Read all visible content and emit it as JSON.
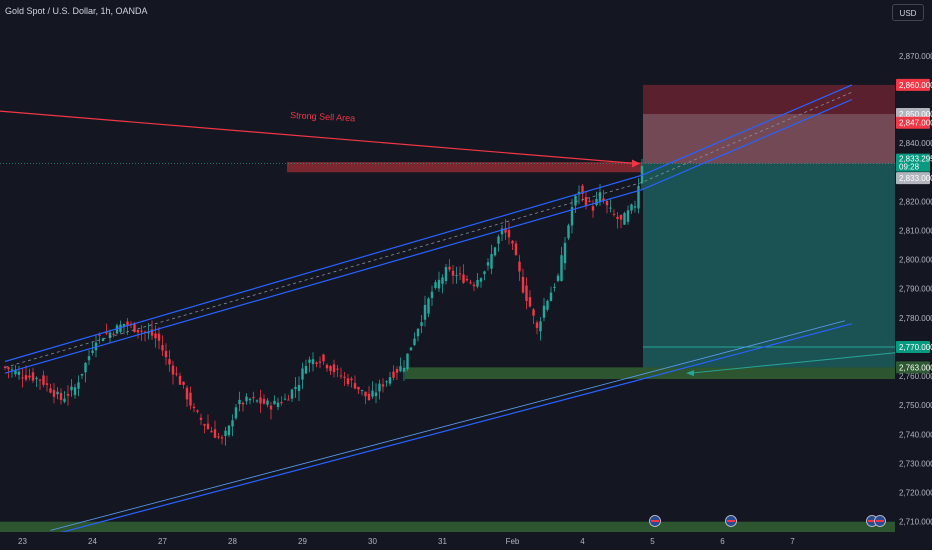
{
  "header": {
    "title": "Gold Spot / U.S. Dollar, 1h, OANDA"
  },
  "currency_button": {
    "label": "USD"
  },
  "colors": {
    "background": "#141722",
    "up": "#26a69a",
    "down": "#f23645",
    "channel": "#2962ff",
    "grid": "#1e222d",
    "zone_green": "#2e5a32",
    "zone_red": "#8c2a33"
  },
  "annotations": {
    "strong_sell_label": "Strong Sell Area"
  },
  "price_labels": {
    "stop": "2,860.000",
    "level_2850": "2,850.000",
    "level_2847": "2,847.000",
    "current_price": "2,833.295",
    "countdown": "09:28",
    "entry": "2,833.000",
    "level_2770": "2,770.000",
    "level_2763": "2,763.000"
  },
  "chart_data": {
    "type": "candlestick",
    "symbol": "Gold Spot / U.S. Dollar",
    "timeframe": "1h",
    "source": "OANDA",
    "ylim": [
      2702,
      2884
    ],
    "y_ticks": [
      "2,870.000",
      "2,840.000",
      "2,820.000",
      "2,810.000",
      "2,800.000",
      "2,790.000",
      "2,780.000",
      "2,760.000",
      "2,750.000",
      "2,740.000",
      "2,730.000",
      "2,720.000",
      "2,710.000"
    ],
    "y_tick_values": [
      2870,
      2840,
      2820,
      2810,
      2800,
      2790,
      2780,
      2760,
      2750,
      2740,
      2730,
      2720,
      2710
    ],
    "x_ticks": [
      "23",
      "24",
      "27",
      "28",
      "29",
      "30",
      "31",
      "Feb",
      "4",
      "5",
      "6",
      "7"
    ],
    "x_tick_index": [
      5,
      25,
      45,
      65,
      85,
      105,
      125,
      145,
      165,
      185,
      205,
      225
    ],
    "close_path": [
      [
        0,
        2763
      ],
      [
        6,
        2760
      ],
      [
        10,
        2759
      ],
      [
        16,
        2752
      ],
      [
        20,
        2756
      ],
      [
        24,
        2767
      ],
      [
        26,
        2773
      ],
      [
        30,
        2775
      ],
      [
        34,
        2778
      ],
      [
        38,
        2776
      ],
      [
        42,
        2774
      ],
      [
        44,
        2772
      ],
      [
        46,
        2766
      ],
      [
        50,
        2758
      ],
      [
        54,
        2748
      ],
      [
        58,
        2742
      ],
      [
        62,
        2738
      ],
      [
        64,
        2742
      ],
      [
        66,
        2750
      ],
      [
        70,
        2752
      ],
      [
        76,
        2750
      ],
      [
        80,
        2752
      ],
      [
        84,
        2758
      ],
      [
        86,
        2765
      ],
      [
        90,
        2766
      ],
      [
        94,
        2762
      ],
      [
        96,
        2760
      ],
      [
        100,
        2757
      ],
      [
        104,
        2752
      ],
      [
        106,
        2755
      ],
      [
        110,
        2760
      ],
      [
        114,
        2764
      ],
      [
        118,
        2777
      ],
      [
        122,
        2789
      ],
      [
        126,
        2796
      ],
      [
        130,
        2794
      ],
      [
        134,
        2792
      ],
      [
        138,
        2798
      ],
      [
        140,
        2805
      ],
      [
        142,
        2810
      ],
      [
        144,
        2808
      ],
      [
        146,
        2800
      ],
      [
        148,
        2790
      ],
      [
        150,
        2784
      ],
      [
        152,
        2776
      ],
      [
        154,
        2784
      ],
      [
        158,
        2794
      ],
      [
        160,
        2806
      ],
      [
        162,
        2818
      ],
      [
        164,
        2824
      ],
      [
        166,
        2820
      ],
      [
        168,
        2818
      ],
      [
        170,
        2822
      ],
      [
        172,
        2818
      ],
      [
        174,
        2815
      ],
      [
        176,
        2813
      ],
      [
        178,
        2816
      ],
      [
        180,
        2819
      ],
      [
        182,
        2833
      ]
    ],
    "trade_setup": {
      "entry": 2833.0,
      "stop_loss": 2860.0,
      "take_profit": 2763.0,
      "levels": [
        2850.0,
        2847.0,
        2770.0
      ]
    },
    "zones": [
      {
        "name": "Strong Sell Area",
        "from": 2830.0,
        "to": 2833.5
      },
      {
        "name": "support",
        "from": 2759.0,
        "to": 2763.0
      },
      {
        "name": "support-lower",
        "from": 2706.0,
        "to": 2710.0
      }
    ],
    "channel": {
      "upper_line": [
        [
          0,
          2765
        ],
        [
          182,
          2829
        ],
        [
          242,
          2860
        ]
      ],
      "lower_line": [
        [
          0,
          2761
        ],
        [
          182,
          2824
        ],
        [
          242,
          2855
        ]
      ],
      "lower_channel_line": [
        [
          15,
          2706
        ],
        [
          242,
          2778
        ]
      ]
    },
    "grid": false,
    "legend": "none"
  }
}
